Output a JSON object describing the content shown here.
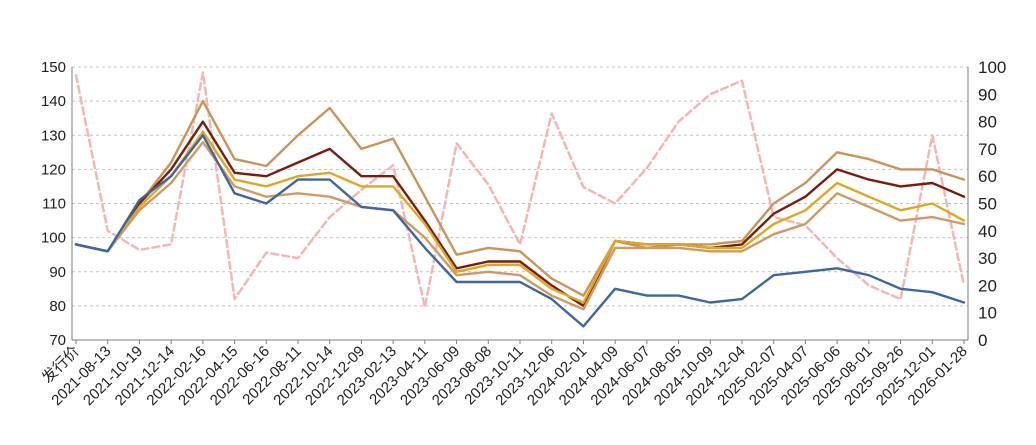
{
  "chart_data": {
    "type": "line",
    "categories": [
      "发行价",
      "2021-08-13",
      "2021-10-19",
      "2021-12-14",
      "2022-02-16",
      "2022-04-15",
      "2022-06-16",
      "2022-08-11",
      "2022-10-14",
      "2022-12-09",
      "2023-02-13",
      "2023-04-11",
      "2023-06-09",
      "2023-08-08",
      "2023-10-11",
      "2023-12-06",
      "2024-02-01",
      "2024-04-09",
      "2024-06-07",
      "2024-08-05",
      "2024-10-09",
      "2024-12-04",
      "2025-02-07",
      "2025-04-07",
      "2025-06-06",
      "2025-08-01",
      "2025-09-26",
      "2025-12-01",
      "2026-01-28"
    ],
    "title": "",
    "xlabel": "",
    "ylabel": "",
    "y_left_ticks": [
      "70",
      "80",
      "90",
      "100",
      "110",
      "120",
      "130",
      "140",
      "150"
    ],
    "y_right_ticks": [
      "0",
      "10",
      "20",
      "30",
      "40",
      "50",
      "60",
      "70",
      "80",
      "90",
      "100"
    ],
    "y_left_range": [
      70,
      150
    ],
    "y_right_range": [
      0,
      100
    ],
    "grid": "horizontal dashed",
    "legend": "none",
    "series": [
      {
        "axis": "right",
        "style": "dashed",
        "color": "#f4b6b6",
        "values": [
          97,
          40,
          33,
          35,
          98,
          15,
          32,
          30,
          45,
          55,
          64,
          12,
          72,
          57,
          35,
          83,
          56,
          50,
          63,
          80,
          90,
          95,
          45,
          42,
          30,
          20,
          15,
          75,
          20
        ]
      },
      {
        "axis": "left",
        "style": "solid",
        "color": "#c8955a",
        "values": [
          98,
          96,
          110,
          122,
          140,
          123,
          121,
          130,
          138,
          126,
          129,
          112,
          95,
          97,
          96,
          88,
          83,
          99,
          97,
          98,
          98,
          99,
          110,
          116,
          125,
          123,
          120,
          120,
          117
        ]
      },
      {
        "axis": "left",
        "style": "solid",
        "color": "#7b1d0a",
        "values": [
          98,
          96,
          110,
          120,
          134,
          119,
          118,
          122,
          126,
          118,
          118,
          105,
          91,
          93,
          93,
          86,
          80,
          99,
          98,
          98,
          97,
          98,
          107,
          112,
          120,
          117,
          115,
          116,
          112
        ]
      },
      {
        "axis": "left",
        "style": "solid",
        "color": "#e2a81c",
        "values": [
          98,
          96,
          109,
          118,
          131,
          117,
          115,
          118,
          119,
          115,
          115,
          104,
          90,
          92,
          92,
          85,
          81,
          99,
          98,
          98,
          97,
          97,
          104,
          108,
          116,
          112,
          108,
          110,
          105
        ]
      },
      {
        "axis": "left",
        "style": "solid",
        "color": "#d19a61",
        "values": [
          98,
          96,
          108,
          116,
          128,
          115,
          112,
          113,
          112,
          109,
          108,
          100,
          89,
          90,
          89,
          83,
          79,
          97,
          97,
          97,
          96,
          96,
          101,
          104,
          113,
          109,
          105,
          106,
          104
        ]
      },
      {
        "axis": "left",
        "style": "solid",
        "color": "#3c67a3",
        "values": [
          98,
          96,
          111,
          118,
          130,
          113,
          110,
          117,
          117,
          109,
          108,
          97,
          87,
          87,
          87,
          82,
          74,
          85,
          83,
          83,
          81,
          82,
          89,
          90,
          91,
          89,
          85,
          84,
          81
        ]
      }
    ]
  }
}
